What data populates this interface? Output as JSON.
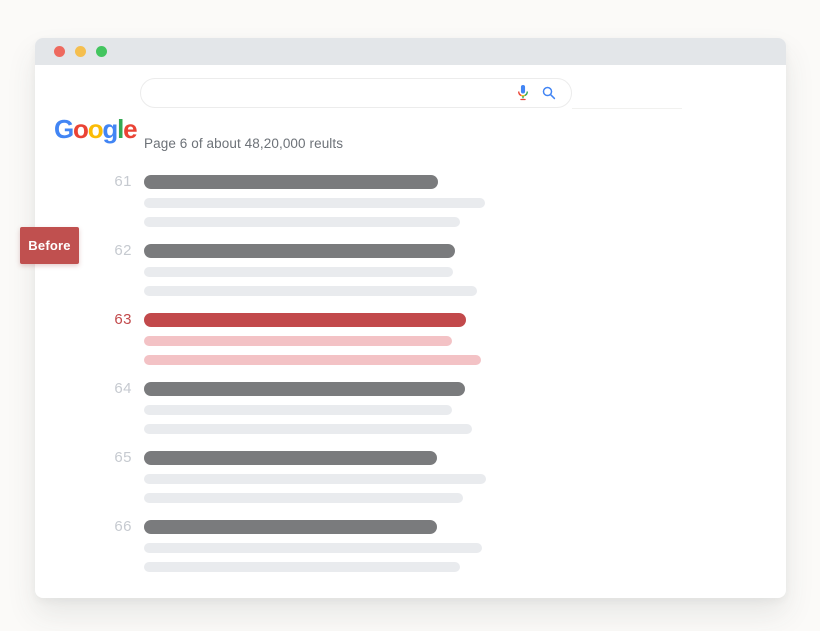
{
  "colors": {
    "accent_red": "#c0504f",
    "bar_dark": "#7a7b7d",
    "bar_light": "#e9ebee",
    "bar_red": "#c2494b",
    "bar_pink": "#f3c2c5",
    "rank_default": "#c6cad0",
    "rank_highlight": "#c2494b",
    "titlebar_bg": "#e3e6e9",
    "google_blue": "#4285F4",
    "google_red": "#EA4335",
    "google_yellow": "#FBBC05",
    "google_green": "#34A853"
  },
  "titlebar": {
    "dots": [
      {
        "name": "close",
        "color": "#ee6a5f"
      },
      {
        "name": "minimize",
        "color": "#f5bf4f"
      },
      {
        "name": "maximize",
        "color": "#43c55f"
      }
    ]
  },
  "logo": {
    "name": "Google",
    "letters": [
      {
        "ch": "G",
        "color": "#4285F4"
      },
      {
        "ch": "o",
        "color": "#EA4335"
      },
      {
        "ch": "o",
        "color": "#FBBC05"
      },
      {
        "ch": "g",
        "color": "#4285F4"
      },
      {
        "ch": "l",
        "color": "#34A853"
      },
      {
        "ch": "e",
        "color": "#EA4335"
      }
    ]
  },
  "search": {
    "value": "",
    "placeholder": "",
    "icons": [
      "mic-icon",
      "search-icon"
    ]
  },
  "results_summary": "Page 6 of about 48,20,000 reults",
  "badge": {
    "label": "Before"
  },
  "results": [
    {
      "rank": "61",
      "highlighted": false,
      "bars": {
        "title": 294,
        "line1": 341,
        "line2": 316
      }
    },
    {
      "rank": "62",
      "highlighted": false,
      "bars": {
        "title": 311,
        "line1": 309,
        "line2": 333
      }
    },
    {
      "rank": "63",
      "highlighted": true,
      "bars": {
        "title": 322,
        "line1": 308,
        "line2": 337
      }
    },
    {
      "rank": "64",
      "highlighted": false,
      "bars": {
        "title": 321,
        "line1": 308,
        "line2": 328
      }
    },
    {
      "rank": "65",
      "highlighted": false,
      "bars": {
        "title": 293,
        "line1": 342,
        "line2": 319
      }
    },
    {
      "rank": "66",
      "highlighted": false,
      "bars": {
        "title": 293,
        "line1": 338,
        "line2": 316
      }
    }
  ]
}
